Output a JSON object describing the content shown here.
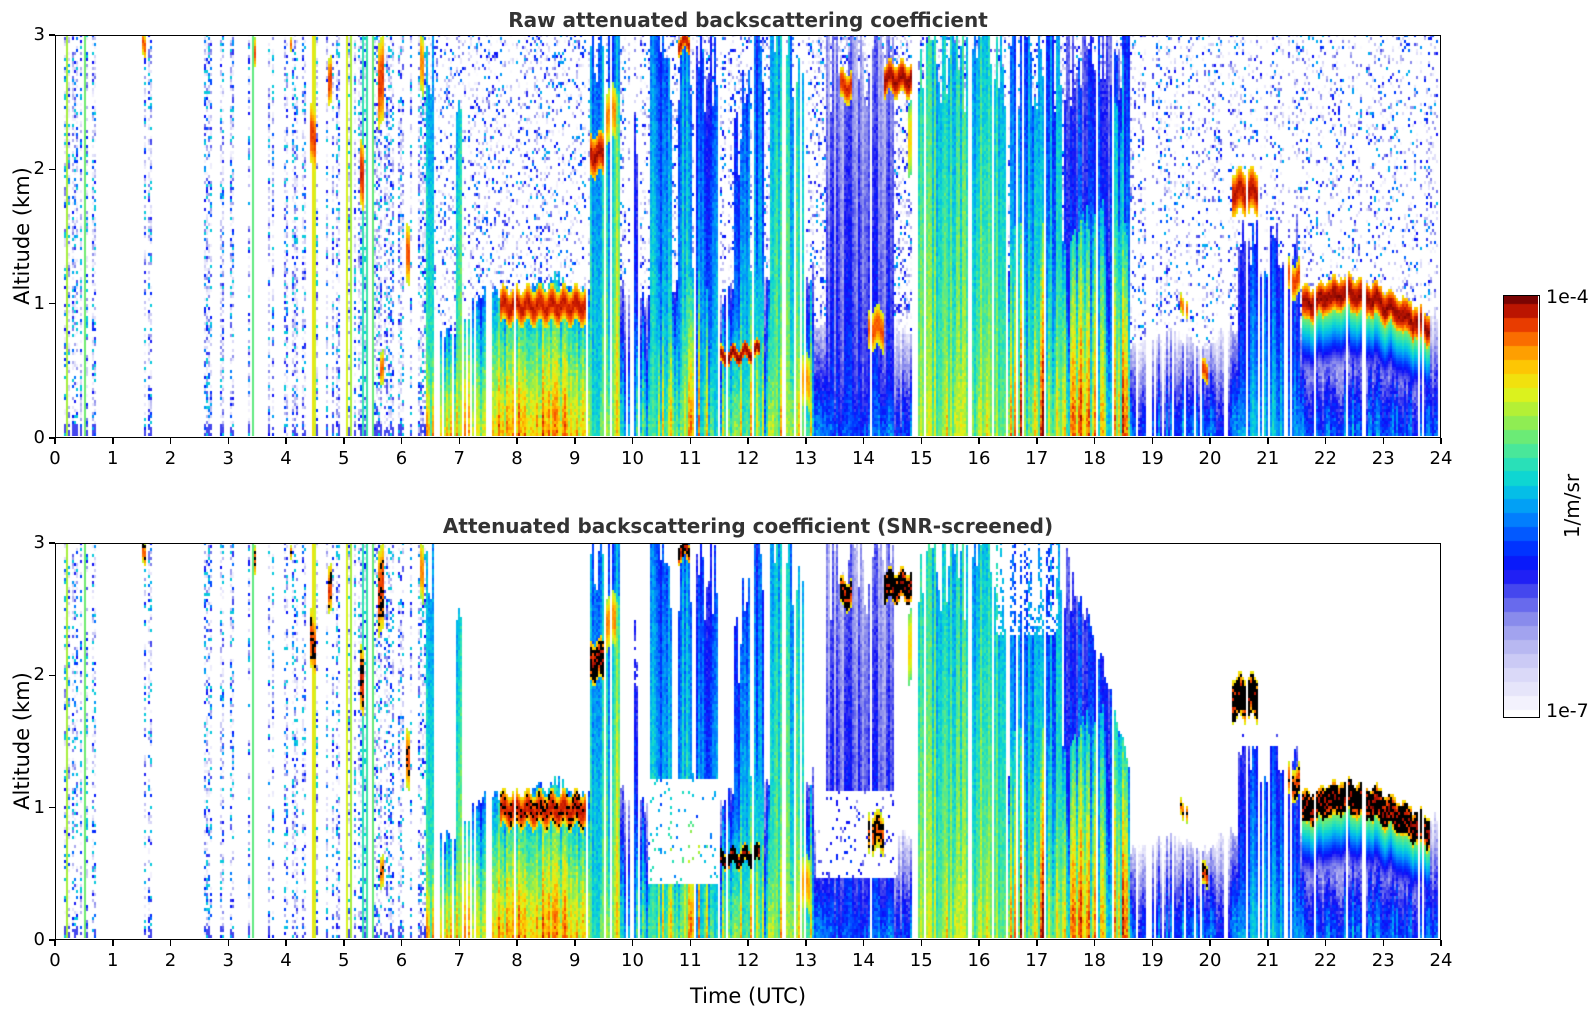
{
  "chart_data": {
    "type": "heatmap",
    "panels": [
      {
        "title": "Raw attenuated backscattering coefficient",
        "screened": false
      },
      {
        "title": "Attenuated backscattering coefficient (SNR-screened)",
        "screened": true
      }
    ],
    "x": {
      "label": "Time (UTC)",
      "min": 0,
      "max": 24,
      "ticks": [
        0,
        1,
        2,
        3,
        4,
        5,
        6,
        7,
        8,
        9,
        10,
        11,
        12,
        13,
        14,
        15,
        16,
        17,
        18,
        19,
        20,
        21,
        22,
        23,
        24
      ]
    },
    "y": {
      "label": "Altitude (km)",
      "min": 0,
      "max": 3,
      "ticks": [
        0,
        1,
        2,
        3
      ]
    },
    "colorscale": {
      "unit": "1/m/sr",
      "max_label": "1e-4",
      "min_label": "1e-7",
      "log_min": -7,
      "log_max": -4,
      "scale": "log10",
      "levels": 30,
      "stops": [
        [
          0.0,
          "#ffffff"
        ],
        [
          0.06,
          "#e9e8fb"
        ],
        [
          0.12,
          "#d2d1f6"
        ],
        [
          0.18,
          "#b1b1f0"
        ],
        [
          0.24,
          "#8486ec"
        ],
        [
          0.3,
          "#4547ee"
        ],
        [
          0.35,
          "#0d0df8"
        ],
        [
          0.4,
          "#0133ff"
        ],
        [
          0.46,
          "#0277ff"
        ],
        [
          0.52,
          "#02b5f0"
        ],
        [
          0.57,
          "#0fd8d0"
        ],
        [
          0.62,
          "#3be6a8"
        ],
        [
          0.67,
          "#6eeb72"
        ],
        [
          0.72,
          "#a5ef3e"
        ],
        [
          0.77,
          "#dff21c"
        ],
        [
          0.82,
          "#fdd605"
        ],
        [
          0.87,
          "#fe9b01"
        ],
        [
          0.92,
          "#f84e00"
        ],
        [
          0.96,
          "#c81800"
        ],
        [
          1.0,
          "#7a0403"
        ]
      ]
    },
    "features": {
      "morning": {
        "t_end": 6.42,
        "stray": 0.025,
        "clusters": [
          [
            0.15,
            0.7,
            0.78
          ],
          [
            0.78,
            1.05,
            0.4
          ],
          [
            1.42,
            1.68,
            0.62
          ],
          [
            2.5,
            2.92,
            0.5
          ],
          [
            2.95,
            3.08,
            0.55
          ],
          [
            3.28,
            3.52,
            0.42
          ],
          [
            3.68,
            3.82,
            0.35
          ],
          [
            3.9,
            4.55,
            0.58
          ],
          [
            4.68,
            5.88,
            0.62
          ],
          [
            5.92,
            6.42,
            0.6
          ]
        ]
      },
      "bl_segments": [
        {
          "t": [
            6.3,
            7.55
          ],
          "top": [
            0.72,
            1.0
          ],
          "logv": -4.65,
          "style": "gappy",
          "gap": 0.4
        },
        {
          "t": [
            7.55,
            9.25
          ],
          "top": [
            1.05,
            1.12
          ],
          "logv": -4.5,
          "style": "solid"
        },
        {
          "t": [
            9.25,
            10.35
          ],
          "top": [
            1.05,
            1.05
          ],
          "logv": -5.45,
          "style": "mixed"
        },
        {
          "t": [
            10.35,
            13.15
          ],
          "top": [
            1.1,
            1.2
          ],
          "logv": -4.95,
          "style": "mixed"
        },
        {
          "t": [
            13.15,
            14.95
          ],
          "top": [
            0.75,
            0.8
          ],
          "logv": -5.75,
          "style": "solid"
        },
        {
          "t": [
            14.95,
            16.55
          ],
          "top": [
            1.15,
            1.25
          ],
          "logv": -5.15,
          "style": "mixed"
        },
        {
          "t": [
            16.55,
            18.65
          ],
          "top": [
            1.5,
            1.6
          ],
          "logv": -4.7,
          "style": "mixed"
        },
        {
          "t": [
            18.65,
            24.0
          ],
          "top": [
            0.7,
            0.85
          ],
          "logv": -5.7,
          "style": "solid"
        }
      ],
      "plumes": [
        {
          "t": [
            6.3,
            6.55
          ],
          "ztop": 3.0,
          "logv": -4.9
        },
        {
          "t": [
            6.95,
            7.05
          ],
          "ztop": 2.2,
          "logv": -5.0
        },
        {
          "t": [
            9.28,
            9.8
          ],
          "ztop": 3.0,
          "logv": -5.15
        },
        {
          "t": [
            9.6,
            9.78
          ],
          "ztop": 2.3,
          "logv": -4.7
        },
        {
          "t": [
            10.0,
            10.12
          ],
          "ztop": 2.6,
          "logv": -5.5
        },
        {
          "t": [
            10.32,
            10.68
          ],
          "ztop": 3.0,
          "logv": -5.3
        },
        {
          "t": [
            10.78,
            11.05
          ],
          "ztop": 3.0,
          "logv": -5.2
        },
        {
          "t": [
            11.1,
            11.5
          ],
          "ztop": 2.8,
          "logv": -5.45
        },
        {
          "t": [
            11.75,
            12.05
          ],
          "ztop": 2.4,
          "logv": -5.4
        },
        {
          "t": [
            12.1,
            12.3
          ],
          "ztop": 3.0,
          "logv": -5.35
        },
        {
          "t": [
            12.38,
            13.0
          ],
          "ztop": 3.0,
          "logv": -5.0
        },
        {
          "t": [
            13.35,
            14.55
          ],
          "ztop": 3.0,
          "logv": -5.95
        },
        {
          "t": [
            14.95,
            16.5
          ],
          "ztop": 3.0,
          "logv": -4.95
        },
        {
          "t": [
            16.55,
            17.45
          ],
          "ztop": 3.0,
          "logv": -5.25
        },
        {
          "t": [
            17.5,
            18.65
          ],
          "ztop": 3.0,
          "logv": -5.6
        },
        {
          "t": [
            18.3,
            18.55
          ],
          "ztop": 2.6,
          "logv": -5.2
        },
        {
          "t": [
            20.5,
            21.6
          ],
          "ztop": 1.45,
          "logv": -5.5
        }
      ],
      "clouds": [
        {
          "t": [
            7.7,
            9.2
          ],
          "z": [
            0.84,
            1.1
          ],
          "logv": -4.12,
          "sat": 0.25
        },
        {
          "t": [
            9.28,
            9.52
          ],
          "z": [
            1.95,
            2.25
          ],
          "logv": -4.08,
          "sat": 0.7
        },
        {
          "t": [
            9.55,
            9.72
          ],
          "z": [
            2.2,
            2.6
          ],
          "logv": -4.35,
          "sat": 0
        },
        {
          "t": [
            10.78,
            11.0
          ],
          "z": [
            2.86,
            3.0
          ],
          "logv": -4.1,
          "sat": 0.6
        },
        {
          "t": [
            11.5,
            12.22
          ],
          "z": [
            0.52,
            0.64
          ],
          "logv": -4.03,
          "sat": 0.9,
          "rise": 0.06
        },
        {
          "t": [
            12.95,
            13.1
          ],
          "z": [
            0.2,
            0.6
          ],
          "logv": -4.4,
          "sat": 0
        },
        {
          "t": [
            13.6,
            13.82
          ],
          "z": [
            2.5,
            2.72
          ],
          "logv": -4.15,
          "sat": 0.8
        },
        {
          "t": [
            14.38,
            14.95
          ],
          "z": [
            2.55,
            2.78
          ],
          "logv": -4.05,
          "sat": 0.8
        },
        {
          "t": [
            14.78,
            14.95
          ],
          "z": [
            1.95,
            2.5
          ],
          "logv": -4.55,
          "sat": 0
        },
        {
          "t": [
            14.08,
            14.38
          ],
          "z": [
            0.65,
            0.95
          ],
          "logv": -4.25,
          "sat": 0.75
        },
        {
          "t": [
            19.5,
            19.64
          ],
          "z": [
            0.9,
            1.04
          ],
          "logv": -4.3,
          "sat": 0.3
        },
        {
          "t": [
            19.85,
            20.0
          ],
          "z": [
            0.38,
            0.55
          ],
          "logv": -4.2,
          "sat": 0.6
        },
        {
          "t": [
            20.42,
            20.9
          ],
          "z": [
            1.66,
            1.98
          ],
          "logv": -4.1,
          "sat": 0.85
        },
        {
          "t": [
            21.3,
            21.58
          ],
          "z": [
            1.05,
            1.3
          ],
          "logv": -4.2,
          "sat": 0.5
        },
        {
          "t": [
            21.62,
            23.85
          ],
          "pts": [
            [
              21.62,
              0.97
            ],
            [
              22.3,
              1.07
            ],
            [
              22.9,
              1.02
            ],
            [
              23.4,
              0.9
            ],
            [
              23.85,
              0.8
            ]
          ],
          "th": 0.2,
          "logv": -4.05,
          "sat": 0.8
        },
        {
          "t": [
            1.5,
            1.56
          ],
          "z": [
            2.82,
            3.0
          ],
          "logv": -4.25,
          "sat": 0.4
        },
        {
          "t": [
            3.42,
            3.48
          ],
          "z": [
            2.78,
            3.0
          ],
          "logv": -4.25,
          "sat": 0.4
        },
        {
          "t": [
            4.05,
            4.1
          ],
          "z": [
            2.9,
            3.0
          ],
          "logv": -4.3,
          "sat": 0.3
        },
        {
          "t": [
            4.4,
            4.5
          ],
          "z": [
            2.0,
            2.45
          ],
          "logv": -4.2,
          "sat": 0.4
        },
        {
          "t": [
            4.72,
            4.79
          ],
          "z": [
            2.5,
            2.85
          ],
          "logv": -4.2,
          "sat": 0.4
        },
        {
          "t": [
            5.26,
            5.34
          ],
          "z": [
            1.7,
            2.2
          ],
          "logv": -4.15,
          "sat": 0.6
        },
        {
          "t": [
            5.6,
            5.7
          ],
          "z": [
            2.3,
            2.95
          ],
          "logv": -4.2,
          "sat": 0.4
        },
        {
          "t": [
            5.62,
            5.68
          ],
          "z": [
            0.35,
            0.6
          ],
          "logv": -4.3,
          "sat": 0.3
        },
        {
          "t": [
            6.06,
            6.14
          ],
          "z": [
            1.1,
            1.55
          ],
          "logv": -4.25,
          "sat": 0.3
        },
        {
          "t": [
            6.32,
            6.4
          ],
          "z": [
            2.55,
            3.0
          ],
          "logv": -4.35,
          "sat": 0
        }
      ],
      "noise_regions": [
        {
          "t": [
            6.35,
            9.7
          ],
          "d": 0.3
        },
        {
          "t": [
            9.7,
            13.2
          ],
          "d": 0.34
        },
        {
          "t": [
            13.2,
            16.55
          ],
          "d": 0.42
        },
        {
          "t": [
            16.55,
            19.35
          ],
          "d": 0.36
        },
        {
          "t": [
            19.35,
            24.0
          ],
          "d": 0.26
        }
      ],
      "snr_holes": [
        {
          "t": [
            9.8,
            10.3
          ],
          "z": [
            1.9,
            3.0
          ],
          "p": 0.45
        },
        {
          "t": [
            10.28,
            11.48
          ],
          "z": [
            0.42,
            1.2
          ],
          "p": 0.93
        },
        {
          "t": [
            13.18,
            14.62
          ],
          "z": [
            0.45,
            1.12
          ],
          "p": 0.93
        },
        {
          "t": [
            16.3,
            17.4
          ],
          "z": [
            2.3,
            3.0
          ],
          "p": 0.5
        },
        {
          "t": [
            19.05,
            20.25
          ],
          "z": [
            1.05,
            3.0
          ],
          "p": 0.8
        },
        {
          "t": [
            20.25,
            24.0
          ],
          "z": [
            1.45,
            3.0
          ],
          "p": 0.97
        }
      ],
      "diag_edge": [
        [
          17.45,
          3.0
        ],
        [
          17.8,
          2.55
        ],
        [
          18.2,
          2.05
        ],
        [
          18.6,
          1.35
        ],
        [
          19.05,
          1.05
        ]
      ],
      "gaps": {
        "regions": [
          [
            0,
            6.42,
            0.0
          ],
          [
            6.42,
            9.3,
            0.05
          ],
          [
            9.3,
            13.2,
            0.1
          ],
          [
            13.2,
            16.5,
            0.07
          ],
          [
            16.5,
            19.35,
            0.09
          ],
          [
            19.35,
            21.7,
            0.17
          ],
          [
            21.7,
            24,
            0.11
          ]
        ],
        "forced": [
          [
            14.88,
            14.97
          ]
        ]
      }
    }
  }
}
